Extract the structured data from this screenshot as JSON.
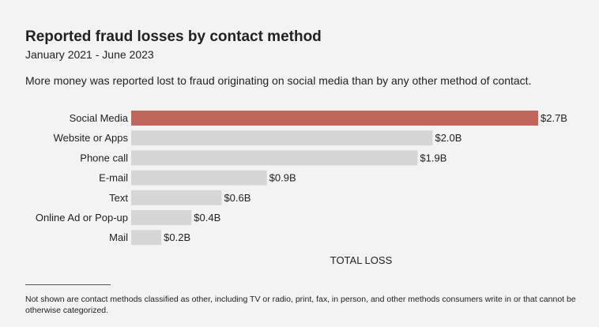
{
  "header": {
    "title": "Reported fraud losses by contact method",
    "subtitle": "January 2021 - June 2023",
    "caption": "More money was reported lost to fraud originating on social media than by any other method of contact."
  },
  "chart_data": {
    "type": "bar",
    "orientation": "horizontal",
    "categories": [
      "Social Media",
      "Website or Apps",
      "Phone call",
      "E-mail",
      "Text",
      "Online Ad or Pop-up",
      "Mail"
    ],
    "values": [
      2.7,
      2.0,
      1.9,
      0.9,
      0.6,
      0.4,
      0.2
    ],
    "value_labels": [
      "$2.7B",
      "$2.0B",
      "$1.9B",
      "$0.9B",
      "$0.6B",
      "$0.4B",
      "$0.2B"
    ],
    "xlabel": "TOTAL LOSS",
    "unit": "USD billions",
    "xlim": [
      0,
      2.7
    ],
    "grid": false,
    "colors": {
      "highlight": "#c0665a",
      "default": "#d6d6d6"
    },
    "highlight_index": 0
  },
  "footnote": "Not shown are contact methods classified as other, including TV or radio, print, fax, in person, and other methods consumers write in or that cannot be otherwise categorized."
}
